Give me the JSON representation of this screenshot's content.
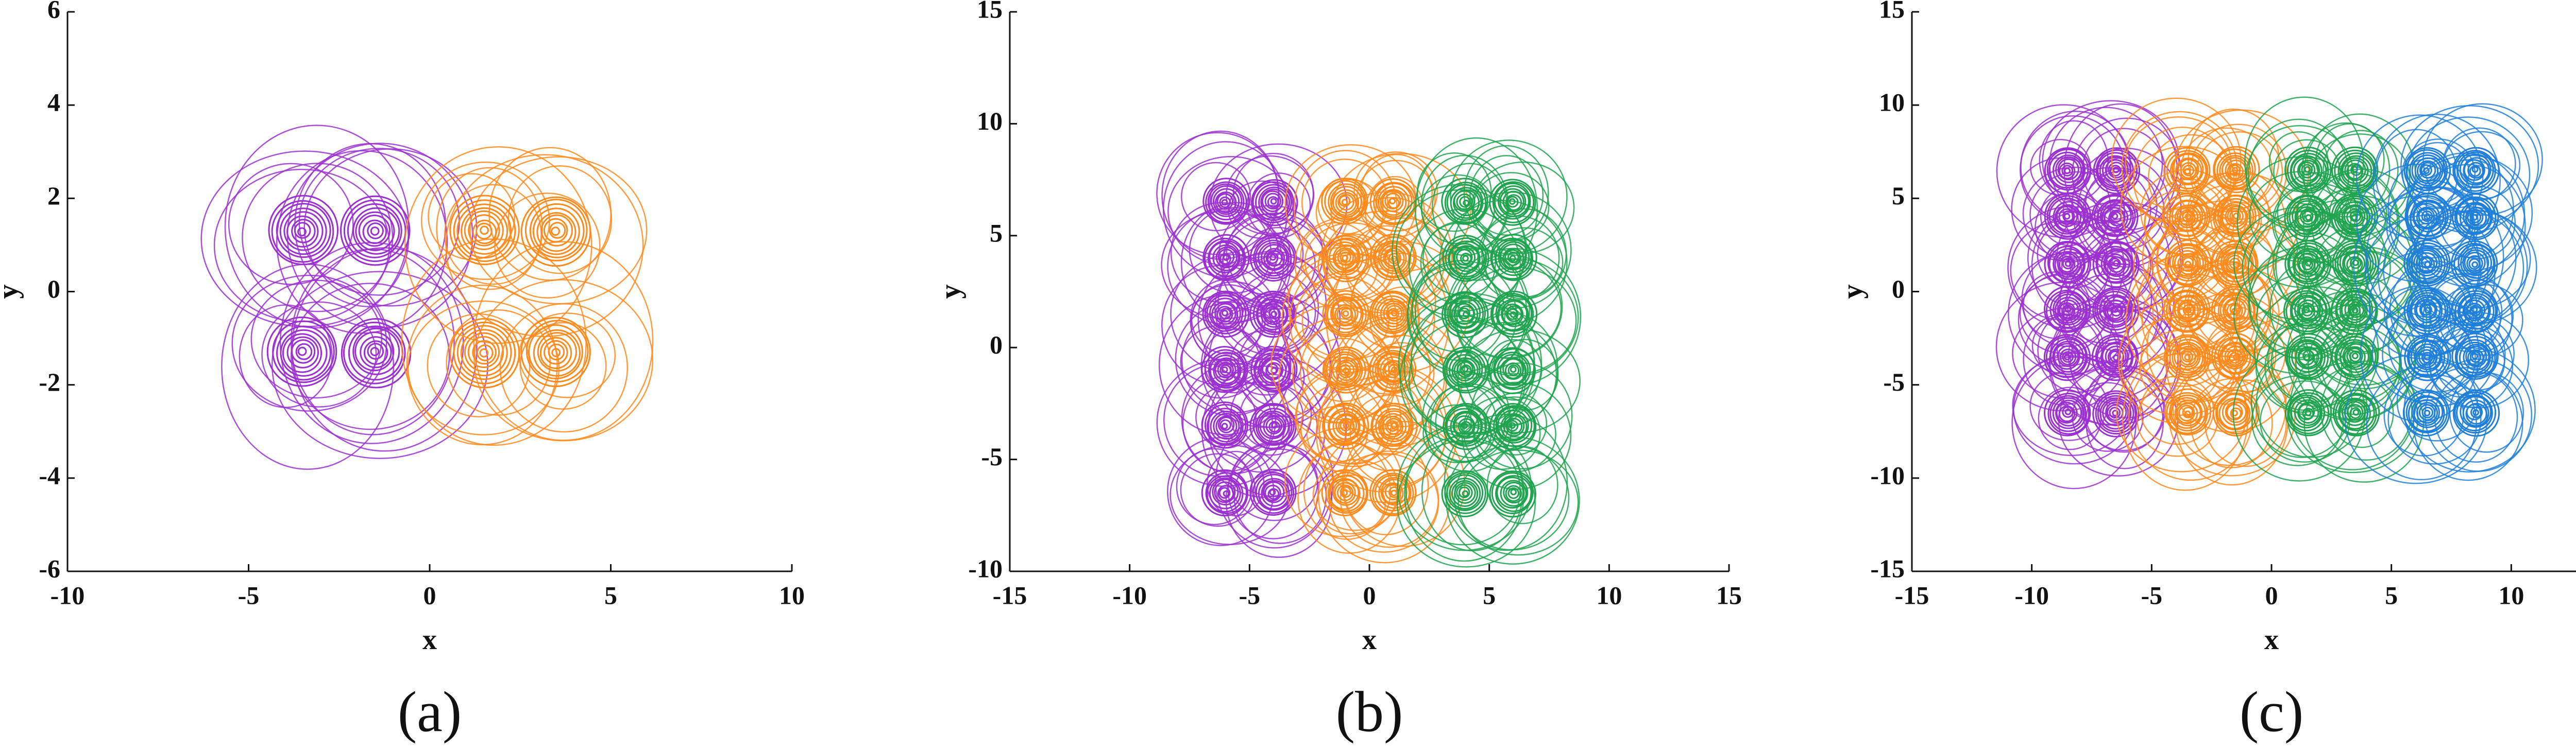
{
  "chart_data": [
    {
      "type": "scroll",
      "caption": "(a)",
      "xlabel": "x",
      "ylabel": "y",
      "xlim": [
        -10,
        10
      ],
      "xticks": [
        -10,
        -5,
        0,
        5,
        10
      ],
      "ylim": [
        -6,
        6
      ],
      "yticks": [
        -6,
        -4,
        -2,
        0,
        2,
        4,
        6
      ],
      "series": [
        {
          "color": "#9b2fd0",
          "x": [
            -3.5,
            -1.5,
            -3.5,
            -1.5
          ],
          "y": [
            1.3,
            1.3,
            -1.3,
            -1.3
          ]
        },
        {
          "color": "#ff8a1c",
          "x": [
            1.5,
            3.5,
            1.5,
            3.5
          ],
          "y": [
            1.3,
            1.3,
            -1.3,
            -1.3
          ]
        }
      ]
    },
    {
      "type": "scroll",
      "caption": "(b)",
      "xlabel": "x",
      "ylabel": "y",
      "xlim": [
        -15,
        15
      ],
      "xticks": [
        -15,
        -10,
        -5,
        0,
        5,
        10,
        15
      ],
      "ylim": [
        -10,
        15
      ],
      "yticks": [
        -10,
        -5,
        0,
        5,
        10,
        15
      ],
      "series": [
        {
          "color": "#9b2fd0",
          "x": [
            -6,
            -4,
            -6,
            -4,
            -6,
            -4,
            -6,
            -4,
            -6,
            -4,
            -6,
            -4
          ],
          "y": [
            6.5,
            6.5,
            4,
            4,
            1.5,
            1.5,
            -1,
            -1,
            -3.5,
            -3.5,
            -6.5,
            -6.5
          ]
        },
        {
          "color": "#ff8a1c",
          "x": [
            -1,
            1,
            -1,
            1,
            -1,
            1,
            -1,
            1,
            -1,
            1,
            -1,
            1
          ],
          "y": [
            6.5,
            6.5,
            4,
            4,
            1.5,
            1.5,
            -1,
            -1,
            -3.5,
            -3.5,
            -6.5,
            -6.5
          ]
        },
        {
          "color": "#1fa34f",
          "x": [
            4,
            6,
            4,
            6,
            4,
            6,
            4,
            6,
            4,
            6,
            4,
            6
          ],
          "y": [
            6.5,
            6.5,
            4,
            4,
            1.5,
            1.5,
            -1,
            -1,
            -3.5,
            -3.5,
            -6.5,
            -6.5
          ]
        }
      ]
    },
    {
      "type": "scroll",
      "caption": "(c)",
      "xlabel": "x",
      "ylabel": "y",
      "xlim": [
        -15,
        15
      ],
      "xticks": [
        -15,
        -10,
        -5,
        0,
        5,
        10,
        15
      ],
      "ylim": [
        -15,
        15
      ],
      "yticks": [
        -15,
        -10,
        -5,
        0,
        5,
        10,
        15
      ],
      "series": [
        {
          "color": "#9b2fd0",
          "x": [
            -8.5,
            -6.5,
            -8.5,
            -6.5,
            -8.5,
            -6.5,
            -8.5,
            -6.5,
            -8.5,
            -6.5,
            -8.5,
            -6.5
          ],
          "y": [
            6.5,
            6.5,
            4,
            4,
            1.5,
            1.5,
            -1,
            -1,
            -3.5,
            -3.5,
            -6.5,
            -6.5
          ]
        },
        {
          "color": "#ff8a1c",
          "x": [
            -3.5,
            -1.5,
            -3.5,
            -1.5,
            -3.5,
            -1.5,
            -3.5,
            -1.5,
            -3.5,
            -1.5,
            -3.5,
            -1.5
          ],
          "y": [
            6.5,
            6.5,
            4,
            4,
            1.5,
            1.5,
            -1,
            -1,
            -3.5,
            -3.5,
            -6.5,
            -6.5
          ]
        },
        {
          "color": "#1fa34f",
          "x": [
            1.5,
            3.5,
            1.5,
            3.5,
            1.5,
            3.5,
            1.5,
            3.5,
            1.5,
            3.5,
            1.5,
            3.5
          ],
          "y": [
            6.5,
            6.5,
            4,
            4,
            1.5,
            1.5,
            -1,
            -1,
            -3.5,
            -3.5,
            -6.5,
            -6.5
          ]
        },
        {
          "color": "#1f7fd8",
          "x": [
            6.5,
            8.5,
            6.5,
            8.5,
            6.5,
            8.5,
            6.5,
            8.5,
            6.5,
            8.5,
            6.5,
            8.5
          ],
          "y": [
            6.5,
            6.5,
            4,
            4,
            1.5,
            1.5,
            -1,
            -1,
            -3.5,
            -3.5,
            -6.5,
            -6.5
          ]
        }
      ]
    }
  ]
}
